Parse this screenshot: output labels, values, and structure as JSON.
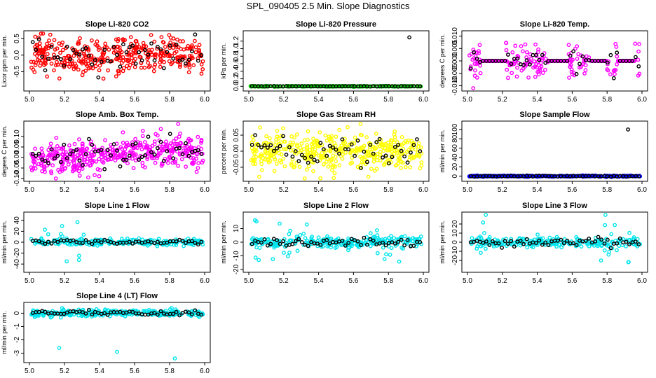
{
  "title": "SPL_090405  2.5 Min. Slope Diagnostics",
  "chart_data": [
    {
      "type": "scatter",
      "title": "Slope Li-820 CO2",
      "ylabel": "Licor ppm per min.",
      "color": "#ff0000",
      "xlim": [
        5.0,
        6.0
      ],
      "ylim": [
        -1.0,
        0.65
      ],
      "yticks": [
        -0.5,
        0.0,
        0.5
      ],
      "yticklabels": [
        "-0.5",
        "0.0",
        "0.5"
      ],
      "xticks": [
        5.0,
        5.2,
        5.4,
        5.6,
        5.8,
        6.0
      ],
      "xticklabels": [
        "5.0",
        "5.2",
        "5.4",
        "5.6",
        "5.8",
        "6.0"
      ],
      "spread": 0.28,
      "n": 380,
      "seed": 11
    },
    {
      "type": "scatter",
      "title": "Slope Li-820 Pressure",
      "ylabel": "kPa per min.",
      "color": "#00c000",
      "xlim": [
        5.0,
        6.0
      ],
      "ylim": [
        -0.05,
        1.4
      ],
      "yticks": [
        0.0,
        0.2,
        0.4,
        0.6,
        0.8,
        1.0,
        1.2
      ],
      "yticklabels": [
        "0.0",
        "0.2",
        "0.4",
        "0.6",
        "0.8",
        "1.0",
        "1.2"
      ],
      "xticks": [
        5.0,
        5.2,
        5.4,
        5.6,
        5.8,
        6.0
      ],
      "xticklabels": [
        "5.0",
        "5.2",
        "5.4",
        "5.6",
        "5.8",
        "6.0"
      ],
      "spread": 0.004,
      "n": 300,
      "seed": 22,
      "outliers": [
        [
          5.92,
          1.3
        ]
      ]
    },
    {
      "type": "scatter",
      "title": "Slope Li-820 Temp.",
      "ylabel": "degrees C per min.",
      "color": "#ff00ff",
      "xlim": [
        5.0,
        6.0
      ],
      "ylim": [
        -0.011,
        0.011
      ],
      "yticks": [
        -0.01,
        -0.005,
        0.0,
        0.005,
        0.01
      ],
      "yticklabels": [
        "-0.010",
        "-0.005",
        "0.000",
        "0.005",
        "0.010"
      ],
      "xticks": [
        5.0,
        5.2,
        5.4,
        5.6,
        5.8,
        6.0
      ],
      "xticklabels": [
        "5.0",
        "5.2",
        "5.4",
        "5.6",
        "5.8",
        "6.0"
      ],
      "spread": 0.0035,
      "n": 320,
      "seed": 33,
      "flat": [
        [
          5.08,
          5.22
        ],
        [
          5.46,
          5.58
        ],
        [
          5.7,
          5.8
        ],
        [
          5.86,
          5.96
        ]
      ]
    },
    {
      "type": "scatter",
      "title": "Slope Amb. Box Temp.",
      "ylabel": "degees C per min.",
      "color": "#ff00ff",
      "xlim": [
        5.0,
        6.0
      ],
      "ylim": [
        -0.1,
        0.16
      ],
      "yticks": [
        -0.1,
        -0.05,
        0.0,
        0.05,
        0.1
      ],
      "yticklabels": [
        "-0.10",
        "-0.05",
        "0.00",
        "0.05",
        "0.10"
      ],
      "xticks": [
        5.0,
        5.2,
        5.4,
        5.6,
        5.8,
        6.0
      ],
      "xticklabels": [
        "5.0",
        "5.2",
        "5.4",
        "5.6",
        "5.8",
        "6.0"
      ],
      "spread": 0.04,
      "trend": [
        -0.01,
        0.04
      ],
      "n": 420,
      "seed": 44
    },
    {
      "type": "scatter",
      "title": "Slope Gas Stream RH",
      "ylabel": "percent per min.",
      "color": "#ffff00",
      "xlim": [
        5.0,
        6.0
      ],
      "ylim": [
        -0.085,
        0.085
      ],
      "yticks": [
        -0.05,
        0.0,
        0.05
      ],
      "yticklabels": [
        "-0.05",
        "0.00",
        "0.05"
      ],
      "xticks": [
        5.0,
        5.2,
        5.4,
        5.6,
        5.8,
        6.0
      ],
      "xticklabels": [
        "5.0",
        "5.2",
        "5.4",
        "5.6",
        "5.8",
        "6.0"
      ],
      "spread": 0.03,
      "n": 420,
      "seed": 55
    },
    {
      "type": "scatter",
      "title": "Slope Sample Flow",
      "ylabel": "ml/min per min.",
      "color": "#0000ff",
      "xlim": [
        5.0,
        6.0
      ],
      "ylim": [
        -5,
        112
      ],
      "yticks": [
        0,
        20,
        40,
        60,
        80,
        100
      ],
      "yticklabels": [
        "0",
        "20",
        "40",
        "60",
        "80",
        "100"
      ],
      "xticks": [
        5.0,
        5.2,
        5.4,
        5.6,
        5.8,
        6.0
      ],
      "xticklabels": [
        "5.0",
        "5.2",
        "5.4",
        "5.6",
        "5.8",
        "6.0"
      ],
      "spread": 0.6,
      "n": 300,
      "seed": 66,
      "outliers": [
        [
          5.92,
          100
        ]
      ]
    },
    {
      "type": "scatter",
      "title": "Slope Line 1 Flow",
      "ylabel": "ml/min per min.",
      "color": "#00e5ee",
      "xlim": [
        5.0,
        6.0
      ],
      "ylim": [
        -50,
        50
      ],
      "yticks": [
        -40,
        -20,
        0,
        20,
        40
      ],
      "yticklabels": [
        "-40",
        "-20",
        "0",
        "20",
        "40"
      ],
      "xticks": [
        5.0,
        5.2,
        5.4,
        5.6,
        5.8,
        6.0
      ],
      "xticklabels": [
        "5.0",
        "5.2",
        "5.4",
        "5.6",
        "5.8",
        "6.0"
      ],
      "spread": 3,
      "n": 260,
      "seed": 77,
      "burst": [
        [
          5.08,
          5.35,
          25
        ],
        [
          5.65,
          5.8,
          8
        ]
      ]
    },
    {
      "type": "scatter",
      "title": "Slope Line 2 Flow",
      "ylabel": "ml/min per min.",
      "color": "#00e5ee",
      "xlim": [
        5.0,
        6.0
      ],
      "ylim": [
        -20,
        20
      ],
      "yticks": [
        -20,
        -10,
        0,
        10
      ],
      "yticklabels": [
        "-20",
        "-10",
        "0",
        "10"
      ],
      "xticks": [
        5.0,
        5.2,
        5.4,
        5.6,
        5.8,
        6.0
      ],
      "xticklabels": [
        "5.0",
        "5.2",
        "5.4",
        "5.6",
        "5.8",
        "6.0"
      ],
      "spread": 2,
      "n": 280,
      "seed": 88,
      "burst": [
        [
          5.03,
          5.35,
          9
        ],
        [
          5.72,
          5.9,
          8
        ]
      ]
    },
    {
      "type": "scatter",
      "title": "Slope Line 3 Flow",
      "ylabel": "ml/min per min.",
      "color": "#00e5ee",
      "xlim": [
        5.0,
        6.0
      ],
      "ylim": [
        -30,
        30
      ],
      "yticks": [
        -20,
        -10,
        0,
        10,
        20
      ],
      "yticklabels": [
        "-20",
        "-10",
        "0",
        "10",
        "20"
      ],
      "xticks": [
        5.0,
        5.2,
        5.4,
        5.6,
        5.8,
        6.0
      ],
      "xticklabels": [
        "5.0",
        "5.2",
        "5.4",
        "5.6",
        "5.8",
        "6.0"
      ],
      "spread": 2.5,
      "n": 260,
      "seed": 99,
      "burst": [
        [
          5.02,
          5.12,
          12
        ],
        [
          5.75,
          5.95,
          14
        ]
      ]
    },
    {
      "type": "scatter",
      "title": "Slope Line 4 (LT) Flow",
      "ylabel": "ml/min per min.",
      "color": "#00e5ee",
      "xlim": [
        5.0,
        6.0
      ],
      "ylim": [
        -3.5,
        0.6
      ],
      "yticks": [
        -3,
        -2,
        -1,
        0
      ],
      "yticklabels": [
        "-3",
        "-2",
        "-1",
        "0"
      ],
      "xticks": [
        5.0,
        5.2,
        5.4,
        5.6,
        5.8,
        6.0
      ],
      "xticklabels": [
        "5.0",
        "5.2",
        "5.4",
        "5.6",
        "5.8",
        "6.0"
      ],
      "spread": 0.12,
      "n": 300,
      "seed": 111,
      "outliers": [
        [
          5.17,
          -2.6
        ],
        [
          5.5,
          -2.9
        ],
        [
          5.83,
          -3.4
        ]
      ]
    }
  ]
}
